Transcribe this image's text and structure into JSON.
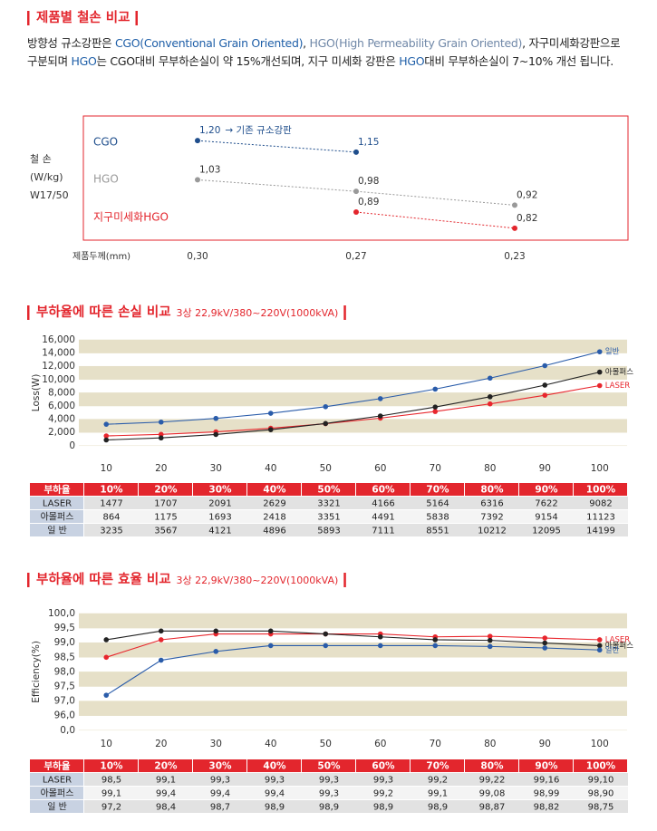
{
  "section1": {
    "title": "제품별 철손 비교",
    "intro": [
      {
        "text": "방향성 규소강판은 "
      },
      {
        "text": "CGO(Conventional Grain Oriented)",
        "color": "#1f5fa8"
      },
      {
        "text": ", "
      },
      {
        "text": "HGO(High Permeability Grain Oriented)",
        "color": "#7088a8"
      },
      {
        "text": ", 자구미세화강판으로 구분되며 "
      },
      {
        "text": "HGO",
        "color": "#1f5fa8"
      },
      {
        "text": "는 CGO대비 무부하손실이 약 15%개선되며, 지구 미세화 강판은 "
      },
      {
        "text": "HGO",
        "color": "#1f5fa8"
      },
      {
        "text": "대비 무부하손실이 7~10% 개선 됩니다."
      }
    ],
    "chart": {
      "type": "line",
      "ylabel": [
        "철 손",
        "(W/kg)",
        "W17/50"
      ],
      "xlabel": "제품두께(mm)",
      "categories": [
        "0,30",
        "0,27",
        "0,23"
      ],
      "ylim": [
        0.78,
        1.24
      ],
      "series": [
        {
          "name": "CGO",
          "color": "#1f4e8c",
          "values": [
            1.2,
            1.15,
            null
          ],
          "value_labels": [
            "1,20",
            "1,15",
            null
          ],
          "annotation": "→ 기존 규소강판"
        },
        {
          "name": "HGO",
          "color": "#999999",
          "values": [
            1.03,
            0.98,
            0.92
          ],
          "value_labels": [
            "1,03",
            "0,98",
            "0,92"
          ]
        },
        {
          "name": "지구미세화HGO",
          "color": "#e3262d",
          "values": [
            null,
            0.89,
            0.82
          ],
          "value_labels": [
            null,
            "0,89",
            "0,82"
          ]
        }
      ]
    }
  },
  "section2": {
    "title": "부하율에 따른 손실 비교",
    "subtitle": "3상 22,9kV/380~220V(1000kVA)",
    "chart": {
      "type": "line",
      "ylabel": "Loss(W)",
      "x": [
        10,
        20,
        30,
        40,
        50,
        60,
        70,
        80,
        90,
        100
      ],
      "xlim": [
        5,
        105
      ],
      "ylim": [
        0,
        16000
      ],
      "yticks": [
        0,
        {
          "value": 2000,
          "label": "2,000"
        },
        {
          "value": 4000,
          "label": "4,000"
        },
        {
          "value": 6000,
          "label": "6,000"
        },
        {
          "value": 8000,
          "label": "8,000"
        },
        {
          "value": 10000,
          "label": "10,000"
        },
        {
          "value": 12000,
          "label": "12,000"
        },
        {
          "value": 14000,
          "label": "14,000"
        },
        {
          "value": 16000,
          "label": "16,000"
        }
      ],
      "series": [
        {
          "name": "LASER",
          "row_label": "LASER",
          "color": "#e8262d",
          "values": [
            1477,
            1707,
            2091,
            2629,
            3321,
            4166,
            5164,
            6316,
            7622,
            9082
          ]
        },
        {
          "name": "아몰퍼스",
          "row_label": "아몰퍼스",
          "color": "#222222",
          "values": [
            864,
            1175,
            1693,
            2418,
            3351,
            4491,
            5838,
            7392,
            9154,
            11123
          ]
        },
        {
          "name": "일반",
          "row_label": "일 반",
          "color": "#2a5caa",
          "values": [
            3235,
            3567,
            4121,
            4896,
            5893,
            7111,
            8551,
            10212,
            12095,
            14199
          ]
        }
      ]
    },
    "table": {
      "header": "부하율",
      "columns": [
        "10%",
        "20%",
        "30%",
        "40%",
        "50%",
        "60%",
        "70%",
        "80%",
        "90%",
        "100%"
      ]
    }
  },
  "section3": {
    "title": "부하율에 따른 효율 비교",
    "subtitle": "3상 22,9kV/380~220V(1000kVA)",
    "chart": {
      "type": "line",
      "ylabel": "Efficiency(%)",
      "x": [
        10,
        20,
        30,
        40,
        50,
        60,
        70,
        80,
        90,
        100
      ],
      "xlim": [
        5,
        105
      ],
      "ylim": [
        0,
        100
      ],
      "yticks": [
        {
          "value": 0,
          "label": "0,0"
        },
        {
          "value": 96,
          "label": "96,0"
        },
        {
          "value": 97,
          "label": "97,0"
        },
        {
          "value": 97.5,
          "label": "97,5"
        },
        {
          "value": 98,
          "label": "98,0"
        },
        {
          "value": 98.5,
          "label": "98,5"
        },
        {
          "value": 99,
          "label": "99,0"
        },
        {
          "value": 99.5,
          "label": "99,5"
        },
        {
          "value": 100,
          "label": "100,0"
        }
      ],
      "series": [
        {
          "name": "LASER",
          "row_label": "LASER",
          "color": "#e8262d",
          "values": [
            98.5,
            99.1,
            99.3,
            99.3,
            99.3,
            99.3,
            99.2,
            99.22,
            99.16,
            99.1
          ],
          "value_labels": [
            "98,5",
            "99,1",
            "99,3",
            "99,3",
            "99,3",
            "99,3",
            "99,2",
            "99,22",
            "99,16",
            "99,10"
          ]
        },
        {
          "name": "아몰퍼스",
          "row_label": "아몰퍼스",
          "color": "#222222",
          "values": [
            99.1,
            99.4,
            99.4,
            99.4,
            99.3,
            99.2,
            99.1,
            99.08,
            98.99,
            98.9
          ],
          "value_labels": [
            "99,1",
            "99,4",
            "99,4",
            "99,4",
            "99,3",
            "99,2",
            "99,1",
            "99,08",
            "98,99",
            "98,90"
          ]
        },
        {
          "name": "일반",
          "row_label": "일 반",
          "color": "#2a5caa",
          "values": [
            97.2,
            98.4,
            98.7,
            98.9,
            98.9,
            98.9,
            98.9,
            98.87,
            98.82,
            98.75
          ],
          "value_labels": [
            "97,2",
            "98,4",
            "98,7",
            "98,9",
            "98,9",
            "98,9",
            "98,9",
            "98,87",
            "98,82",
            "98,75"
          ]
        }
      ]
    },
    "table": {
      "header": "부하율",
      "columns": [
        "10%",
        "20%",
        "30%",
        "40%",
        "50%",
        "60%",
        "70%",
        "80%",
        "90%",
        "100%"
      ]
    }
  }
}
